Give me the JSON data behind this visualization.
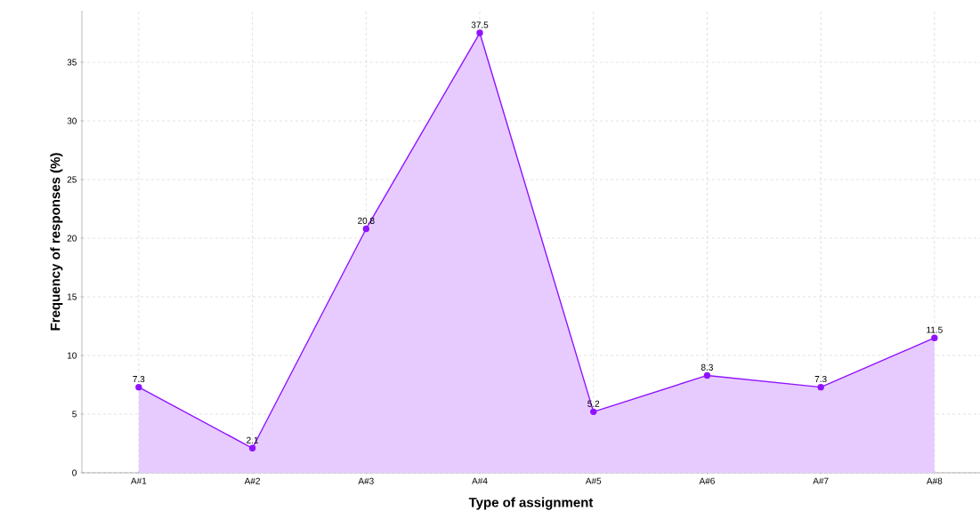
{
  "chart_data": {
    "type": "area",
    "xlabel": "Type of assignment",
    "ylabel": "Frequency of responses (%)",
    "categories": [
      "A#1",
      "A#2",
      "A#3",
      "A#4",
      "A#5",
      "A#6",
      "A#7",
      "A#8"
    ],
    "values": [
      7.3,
      2.1,
      20.8,
      37.5,
      5.2,
      8.3,
      7.3,
      11.5
    ],
    "color": "#9013fe",
    "ylim": [
      0,
      39.4
    ],
    "yticks": [
      0,
      5,
      10,
      15,
      20,
      25,
      30,
      35
    ],
    "grid": true,
    "marker": "circle",
    "line_style": "solid",
    "data_labels": true
  }
}
